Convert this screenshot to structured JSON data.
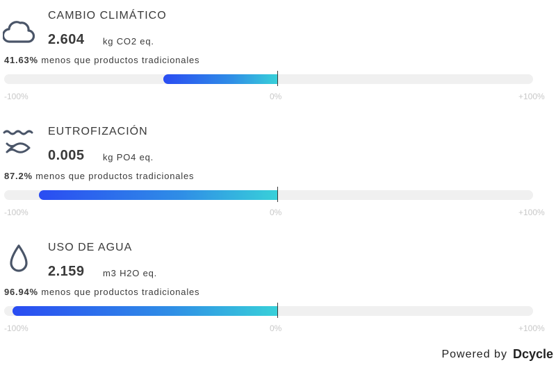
{
  "metrics": [
    {
      "title": "CAMBIO CLIMÁTICO",
      "value": "2.604",
      "unit": "kg CO2 eq.",
      "percent_text": "41.63%",
      "compare_text": "menos que productos tradicionales",
      "reduction_percent": 41.63,
      "icon": "cloud-icon",
      "scale": {
        "min": "-100%",
        "zero": "0%",
        "max": "+100%"
      }
    },
    {
      "title": "EUTROFIZACIÓN",
      "value": "0.005",
      "unit": "kg PO4 eq.",
      "percent_text": "87.2%",
      "compare_text": "menos que productos tradicionales",
      "reduction_percent": 87.2,
      "icon": "fish-wave-icon",
      "scale": {
        "min": "-100%",
        "zero": "0%",
        "max": "+100%"
      }
    },
    {
      "title": "USO DE AGUA",
      "value": "2.159",
      "unit": "m3 H2O eq.",
      "percent_text": "96.94%",
      "compare_text": "menos que productos tradicionales",
      "reduction_percent": 96.94,
      "icon": "water-drop-icon",
      "scale": {
        "min": "-100%",
        "zero": "0%",
        "max": "+100%"
      }
    }
  ],
  "footer": {
    "powered_by": "Powered by",
    "brand": "Dcycle"
  },
  "colors": {
    "text": "#3a3a3a",
    "icon": "#4a5568",
    "track": "#f0f0f0",
    "gradient_start": "#2a4cf2",
    "gradient_end": "#38d0d9",
    "tick": "#c8c8c8"
  }
}
